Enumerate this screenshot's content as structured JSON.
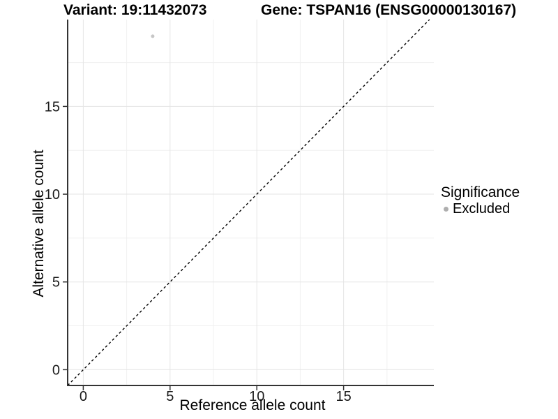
{
  "chart_data": {
    "type": "scatter",
    "title_left": "Variant: 19:11432073",
    "title_right": "Gene: TSPAN16 (ENSG00000130167)",
    "xlabel": "Reference allele count",
    "ylabel": "Alternative allele count",
    "x_ticks": [
      0,
      5,
      10,
      15
    ],
    "y_ticks": [
      0,
      5,
      10,
      15
    ],
    "x_minor_gridlines": [
      2.5,
      7.5,
      12.5,
      17.5
    ],
    "y_minor_gridlines": [
      2.5,
      7.5,
      12.5,
      17.5
    ],
    "xlim": [
      -0.9,
      20.2
    ],
    "ylim": [
      -0.9,
      19.95
    ],
    "grid": "major+minor",
    "series": [
      {
        "name": "Excluded",
        "color": "#c6c6c6",
        "points": [
          {
            "x": 4,
            "y": 19
          }
        ]
      }
    ],
    "reference_line": {
      "kind": "identity y=x",
      "style": "dashed",
      "color": "#000000"
    },
    "legend_position": "right"
  },
  "legend": {
    "title": "Significance",
    "items": [
      {
        "label": "Excluded",
        "color": "#aeaeae"
      }
    ]
  },
  "colors": {
    "background": "#ffffff",
    "grid_major": "#e5e5e5",
    "grid_minor": "#f0f0f0",
    "axis_line": "#333333",
    "tick_text": "#1a1a1a"
  }
}
